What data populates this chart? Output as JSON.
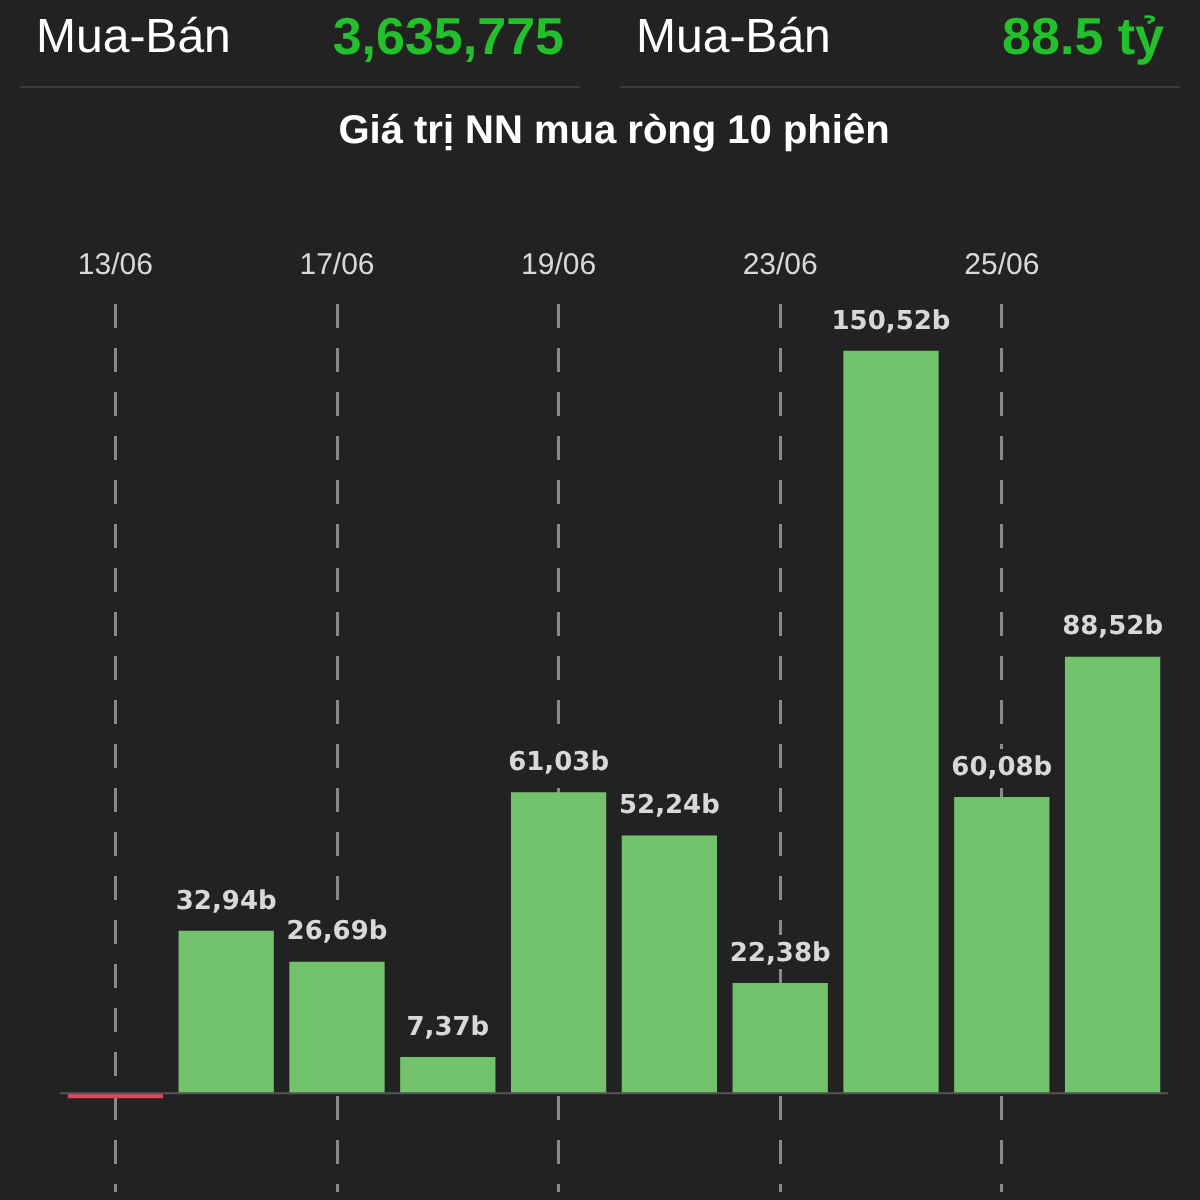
{
  "chart_data": {
    "type": "bar",
    "title": "Giá trị NN mua ròng 10 phiên",
    "annotations": [
      "Mua-Bán",
      "3,635,775",
      "Mua-Bán",
      "88.5 tỷ"
    ],
    "categories": [
      "13/06",
      null,
      "17/06",
      null,
      "19/06",
      null,
      "23/06",
      null,
      "25/06",
      null
    ],
    "values": [
      -1,
      32.94,
      26.69,
      7.37,
      61.03,
      52.24,
      22.38,
      150.52,
      60.08,
      88.52
    ],
    "colors": [
      "#e0455a",
      "#72c16b",
      "#72c16b",
      "#72c16b",
      "#72c16b",
      "#72c16b",
      "#72c16b",
      "#72c16b",
      "#72c16b",
      "#72c16b"
    ],
    "value_labels": [
      null,
      "32,94b",
      "26,69b",
      "7,37b",
      "61,03b",
      "52,24b",
      "22,38b",
      "150,52b",
      "60,08b",
      "88,52b"
    ],
    "grid": "x",
    "legend": false
  }
}
